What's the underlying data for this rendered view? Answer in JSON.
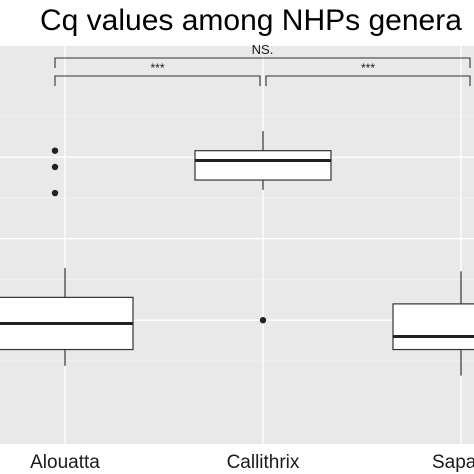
{
  "chart_data": {
    "type": "box",
    "title": "Cq values among NHPs genera",
    "xlabel": "",
    "ylabel": "",
    "categories": [
      "Alouatta",
      "Callithrix",
      "Sapajus"
    ],
    "tick_labels_visible": [
      "Alouatta",
      "Callithrix",
      "Sapa"
    ],
    "ylim": [
      0,
      100
    ],
    "grid": true,
    "legend": "none",
    "boxes": [
      {
        "category": "Alouatta",
        "whisker_low": 16,
        "q1": 21,
        "median": 29,
        "q3": 37,
        "whisker_high": 46,
        "outliers": [
          69,
          77,
          82
        ]
      },
      {
        "category": "Callithrix",
        "whisker_low": 70,
        "q1": 73,
        "median": 79,
        "q3": 82,
        "whisker_high": 88,
        "outliers": [
          30
        ]
      },
      {
        "category": "Sapajus",
        "whisker_low": 13,
        "q1": 21,
        "median": 25,
        "q3": 35,
        "whisker_high": 45,
        "outliers": []
      }
    ],
    "significance": [
      {
        "from": "Alouatta",
        "to": "Callithrix",
        "label": "***"
      },
      {
        "from": "Callithrix",
        "to": "Sapajus",
        "label": "***"
      },
      {
        "from": "Alouatta",
        "to": "Sapajus",
        "label": "NS."
      }
    ]
  },
  "colors": {
    "panel_background": "#e9e9e9",
    "grid_line": "#ffffff",
    "box_fill": "#ffffff",
    "box_stroke": "#333333"
  }
}
